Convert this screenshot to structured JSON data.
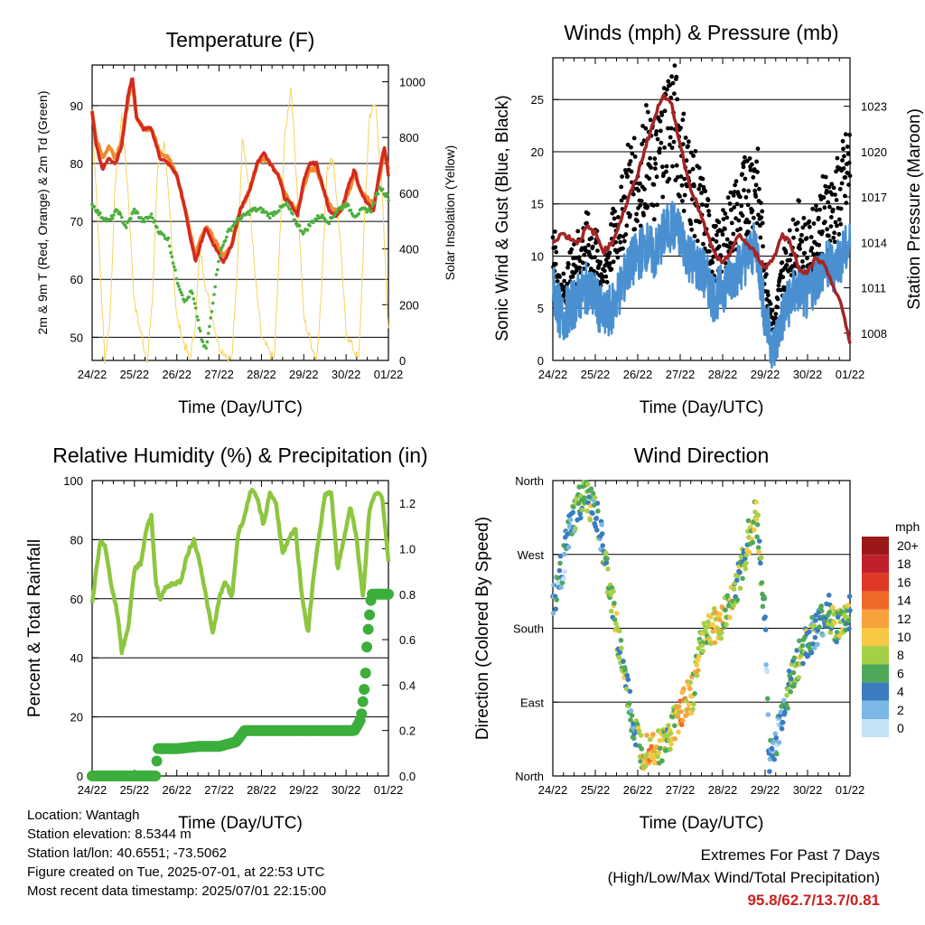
{
  "chart_data": [
    {
      "type": "line",
      "title": "Temperature (F)",
      "xlabel": "Time (Day/UTC)",
      "ylabel": "2m & 9m T (Red, Orange) & 2m Td (Green)",
      "y2label": "Solar Insolation (Yellow)",
      "xticks": [
        "24/22",
        "25/22",
        "26/22",
        "27/22",
        "28/22",
        "29/22",
        "30/22",
        "01/22"
      ],
      "ylim": [
        46,
        97
      ],
      "yticks": [
        50,
        60,
        70,
        80,
        90
      ],
      "y2lim": [
        0,
        1060
      ],
      "y2ticks": [
        0,
        200,
        400,
        600,
        800,
        1000
      ],
      "grid": true,
      "series": [
        {
          "name": "2m T",
          "color": "#d42a1e",
          "x": [
            0,
            0.1,
            0.25,
            0.4,
            0.55,
            0.7,
            0.85,
            0.95,
            1.05,
            1.2,
            1.4,
            1.6,
            1.8,
            2.0,
            2.2,
            2.35,
            2.45,
            2.55,
            2.7,
            2.8,
            2.95,
            3.1,
            3.3,
            3.5,
            3.7,
            3.9,
            4.05,
            4.2,
            4.4,
            4.55,
            4.7,
            4.85,
            5.0,
            5.15,
            5.3,
            5.45,
            5.6,
            5.75,
            5.9,
            6.05,
            6.2,
            6.35,
            6.5,
            6.65,
            6.8,
            6.9,
            7.0
          ],
          "y": [
            89,
            83,
            79,
            81,
            80,
            83,
            92,
            95,
            88,
            86,
            86,
            81,
            80,
            78,
            72,
            66,
            63,
            66,
            69,
            67,
            65,
            63,
            66,
            72,
            75,
            80,
            82,
            80,
            78,
            74,
            73,
            71,
            77,
            80,
            80,
            76,
            72,
            71,
            72,
            76,
            79,
            75,
            73,
            72,
            79,
            83,
            78
          ]
        },
        {
          "name": "9m T",
          "color": "#f08a30",
          "x": [
            0,
            0.1,
            0.25,
            0.4,
            0.55,
            0.7,
            0.85,
            0.95,
            1.05,
            1.2,
            1.4,
            1.6,
            1.8,
            2.0,
            2.2,
            2.35,
            2.45,
            2.55,
            2.7,
            2.8,
            2.95,
            3.1,
            3.3,
            3.5,
            3.7,
            3.9,
            4.05,
            4.2,
            4.4,
            4.55,
            4.7,
            4.85,
            5.0,
            5.15,
            5.3,
            5.45,
            5.6,
            5.75,
            5.9,
            6.05,
            6.2,
            6.35,
            6.5,
            6.65,
            6.8,
            6.9,
            7.0
          ],
          "y": [
            89,
            84,
            81,
            83,
            81,
            84,
            91,
            94,
            88,
            86,
            86,
            82,
            81,
            78,
            72,
            67,
            64,
            67,
            69,
            68,
            66,
            64,
            66,
            72,
            75,
            80,
            81,
            80,
            78,
            75,
            73,
            72,
            76,
            79,
            79,
            76,
            73,
            72,
            72,
            75,
            78,
            75,
            74,
            73,
            78,
            82,
            79
          ]
        },
        {
          "name": "2m Td",
          "color": "#4caf3e",
          "x": [
            0,
            0.2,
            0.4,
            0.6,
            0.8,
            1.0,
            1.2,
            1.4,
            1.6,
            1.8,
            2.0,
            2.2,
            2.35,
            2.5,
            2.6,
            2.7,
            2.85,
            3.0,
            3.2,
            3.4,
            3.6,
            3.8,
            4.0,
            4.2,
            4.4,
            4.6,
            4.8,
            5.0,
            5.2,
            5.4,
            5.6,
            5.8,
            6.0,
            6.2,
            6.4,
            6.6,
            6.8,
            7.0
          ],
          "y": [
            73,
            71,
            70,
            72,
            69,
            72,
            70,
            71,
            68,
            67,
            60,
            56,
            58,
            53,
            49,
            48,
            56,
            64,
            68,
            70,
            71,
            72,
            72,
            71,
            72,
            73,
            70,
            68,
            70,
            71,
            70,
            72,
            73,
            71,
            72,
            72,
            76,
            74
          ]
        },
        {
          "name": "Solar Insolation",
          "color": "#f4d35e",
          "axis": "right",
          "x": [
            0,
            0.3,
            0.42,
            0.55,
            0.7,
            0.85,
            1.0,
            1.3,
            1.42,
            1.55,
            1.7,
            1.85,
            2.0,
            2.3,
            2.42,
            2.55,
            2.7,
            2.85,
            3.0,
            3.3,
            3.42,
            3.55,
            3.7,
            3.85,
            4.0,
            4.3,
            4.42,
            4.55,
            4.7,
            4.85,
            5.0,
            5.3,
            5.42,
            5.55,
            5.7,
            5.85,
            6.0,
            6.3,
            6.42,
            6.55,
            6.7,
            6.85,
            7.0
          ],
          "y": [
            900,
            0,
            150,
            650,
            880,
            600,
            200,
            0,
            200,
            700,
            780,
            500,
            150,
            0,
            100,
            400,
            250,
            150,
            50,
            0,
            300,
            820,
            620,
            300,
            80,
            0,
            380,
            800,
            990,
            600,
            150,
            0,
            250,
            700,
            720,
            450,
            100,
            0,
            450,
            880,
            920,
            600,
            100
          ]
        }
      ]
    },
    {
      "type": "scatter",
      "title": "Winds (mph) & Pressure (mb)",
      "xlabel": "Time (Day/UTC)",
      "ylabel": "Sonic Wind & Gust (Blue, Black)",
      "y2label": "Station Pressure (Maroon)",
      "xticks": [
        "24/22",
        "25/22",
        "26/22",
        "27/22",
        "28/22",
        "29/22",
        "30/22",
        "01/22"
      ],
      "ylim": [
        0,
        29
      ],
      "yticks": [
        0,
        5,
        10,
        15,
        20,
        25
      ],
      "y2lim": [
        1006.2,
        1026.2
      ],
      "y2ticks": [
        1008,
        1011,
        1014,
        1017,
        1020,
        1023
      ],
      "grid": true,
      "series": [
        {
          "name": "Sonic Wind",
          "color": "#4a90d0",
          "x": [
            0,
            0.2,
            0.4,
            0.6,
            0.8,
            1.0,
            1.2,
            1.4,
            1.6,
            1.8,
            2.0,
            2.2,
            2.4,
            2.6,
            2.8,
            3.0,
            3.2,
            3.4,
            3.6,
            3.8,
            4.0,
            4.2,
            4.4,
            4.6,
            4.8,
            5.0,
            5.2,
            5.4,
            5.6,
            5.8,
            6.0,
            6.2,
            6.4,
            6.6,
            6.8,
            7.0
          ],
          "y": [
            7,
            4,
            5,
            6,
            7,
            6,
            4,
            5,
            7,
            9,
            10,
            11,
            10,
            12,
            13,
            12,
            10,
            9,
            8,
            6,
            7,
            8,
            9,
            10,
            11,
            4,
            1,
            4,
            6,
            7,
            6,
            8,
            9,
            9,
            10,
            11
          ]
        },
        {
          "name": "Gust",
          "color": "#000000",
          "x": [
            0,
            0.2,
            0.4,
            0.6,
            0.8,
            1.0,
            1.2,
            1.4,
            1.6,
            1.8,
            2.0,
            2.2,
            2.4,
            2.6,
            2.8,
            3.0,
            3.2,
            3.4,
            3.6,
            3.8,
            4.0,
            4.2,
            4.4,
            4.6,
            4.8,
            5.0,
            5.2,
            5.4,
            5.6,
            5.8,
            6.0,
            6.2,
            6.4,
            6.6,
            6.8,
            7.0
          ],
          "y": [
            11,
            6,
            8,
            10,
            11,
            10,
            8,
            11,
            13,
            17,
            16,
            19,
            17,
            21,
            23,
            20,
            17,
            15,
            13,
            10,
            11,
            13,
            14,
            16,
            17,
            8,
            3,
            8,
            10,
            12,
            10,
            12,
            14,
            14,
            16,
            18
          ]
        },
        {
          "name": "Station Pressure",
          "color": "#a52424",
          "axis": "right",
          "x": [
            0,
            0.2,
            0.4,
            0.6,
            0.8,
            1.0,
            1.2,
            1.4,
            1.6,
            1.8,
            2.0,
            2.2,
            2.4,
            2.6,
            2.8,
            3.0,
            3.2,
            3.4,
            3.6,
            3.8,
            4.0,
            4.2,
            4.4,
            4.6,
            4.8,
            5.0,
            5.2,
            5.4,
            5.6,
            5.8,
            6.0,
            6.2,
            6.4,
            6.6,
            6.8,
            7.0
          ],
          "y": [
            1014.0,
            1014.6,
            1014.3,
            1014.0,
            1015.0,
            1014.6,
            1013.4,
            1014.0,
            1015.5,
            1017.0,
            1018.5,
            1020.5,
            1022.2,
            1023.9,
            1023.0,
            1020.5,
            1018.0,
            1016.5,
            1014.8,
            1013.3,
            1012.5,
            1013.5,
            1014.5,
            1013.8,
            1013.2,
            1012.3,
            1013.0,
            1014.5,
            1014.0,
            1012.2,
            1012.0,
            1013.0,
            1012.5,
            1011.0,
            1010.0,
            1007.2
          ]
        }
      ]
    },
    {
      "type": "line",
      "title": "Relative Humidity (%) & Precipitation (in)",
      "xlabel": "Time (Day/UTC)",
      "ylabel": "Percent & Total Rainfall",
      "xticks": [
        "24/22",
        "25/22",
        "26/22",
        "27/22",
        "28/22",
        "29/22",
        "30/22",
        "01/22"
      ],
      "ylim": [
        0,
        100
      ],
      "yticks": [
        0,
        20,
        40,
        60,
        80,
        100
      ],
      "y2lim": [
        0,
        1.3
      ],
      "y2ticks": [
        "0.0",
        "0.2",
        "0.4",
        "0.6",
        "0.8",
        "1.0",
        "1.2"
      ],
      "grid": true,
      "series": [
        {
          "name": "Relative Humidity",
          "color": "#8dc63f",
          "x": [
            0,
            0.1,
            0.2,
            0.3,
            0.45,
            0.6,
            0.7,
            0.85,
            1.0,
            1.15,
            1.3,
            1.4,
            1.5,
            1.6,
            1.75,
            1.9,
            2.1,
            2.25,
            2.4,
            2.55,
            2.7,
            2.85,
            3.0,
            3.15,
            3.3,
            3.45,
            3.6,
            3.75,
            3.9,
            4.05,
            4.2,
            4.35,
            4.5,
            4.65,
            4.8,
            4.95,
            5.1,
            5.25,
            5.4,
            5.5,
            5.65,
            5.8,
            5.95,
            6.1,
            6.25,
            6.4,
            6.55,
            6.7,
            6.85,
            7.0
          ],
          "y": [
            58,
            70,
            80,
            78,
            65,
            55,
            42,
            50,
            70,
            72,
            85,
            88,
            66,
            60,
            64,
            65,
            66,
            75,
            80,
            72,
            60,
            48,
            60,
            66,
            60,
            82,
            88,
            97,
            94,
            85,
            96,
            92,
            75,
            80,
            84,
            62,
            48,
            70,
            85,
            95,
            96,
            70,
            80,
            92,
            80,
            60,
            90,
            96,
            95,
            73
          ]
        },
        {
          "name": "Total Rainfall",
          "color": "#3cae3c",
          "axis": "right",
          "x": [
            0,
            0.5,
            1.0,
            1.5,
            1.55,
            2.0,
            2.5,
            3.0,
            3.4,
            3.6,
            3.8,
            4.2,
            4.6,
            5.0,
            5.4,
            5.8,
            6.0,
            6.2,
            6.35,
            6.45,
            6.5,
            6.6,
            6.8,
            7.0
          ],
          "y": [
            0,
            0,
            0,
            0,
            0.12,
            0.12,
            0.13,
            0.13,
            0.15,
            0.2,
            0.2,
            0.2,
            0.2,
            0.2,
            0.2,
            0.2,
            0.2,
            0.2,
            0.25,
            0.42,
            0.6,
            0.8,
            0.8,
            0.8
          ]
        }
      ]
    },
    {
      "type": "scatter",
      "title": "Wind Direction",
      "xlabel": "Time (Day/UTC)",
      "ylabel": "Direction (Colored By Speed)",
      "xticks": [
        "24/22",
        "25/22",
        "26/22",
        "27/22",
        "28/22",
        "29/22",
        "30/22",
        "01/22"
      ],
      "yticks": [
        "North",
        "East",
        "South",
        "West",
        "North"
      ],
      "ylim": [
        0,
        360
      ],
      "grid": true,
      "legend": {
        "title": "mph",
        "position": "right",
        "labels": [
          "20+",
          "18",
          "16",
          "14",
          "12",
          "10",
          "8",
          "6",
          "4",
          "2",
          "0"
        ],
        "colors": [
          "#9a1818",
          "#c0202a",
          "#de3a26",
          "#f06828",
          "#f8a23e",
          "#f6c844",
          "#a6cf48",
          "#4ea85a",
          "#3a7cc0",
          "#7ab8e6",
          "#c4e2f6"
        ]
      },
      "series": [
        {
          "name": "Wind Direction",
          "x": [
            0,
            0.2,
            0.4,
            0.6,
            0.8,
            1.0,
            1.1,
            1.3,
            1.5,
            1.7,
            1.9,
            2.1,
            2.3,
            2.5,
            2.7,
            2.9,
            3.1,
            3.3,
            3.5,
            3.7,
            3.9,
            4.1,
            4.3,
            4.5,
            4.6,
            4.8,
            5.0,
            5.1,
            5.3,
            5.5,
            5.7,
            5.9,
            6.1,
            6.3,
            6.5,
            6.7,
            6.9,
            7.0
          ],
          "y": [
            210,
            250,
            300,
            330,
            340,
            320,
            300,
            240,
            180,
            120,
            60,
            30,
            40,
            35,
            45,
            70,
            90,
            100,
            170,
            180,
            185,
            200,
            230,
            260,
            290,
            320,
            190,
            20,
            50,
            100,
            130,
            155,
            170,
            185,
            200,
            180,
            190,
            200
          ],
          "speed": [
            4,
            3,
            4,
            6,
            8,
            5,
            4,
            6,
            8,
            6,
            4,
            9,
            11,
            8,
            7,
            10,
            12,
            9,
            8,
            9,
            10,
            8,
            7,
            6,
            8,
            9,
            3,
            4,
            3,
            5,
            6,
            7,
            5,
            4,
            6,
            7,
            8,
            6
          ]
        }
      ]
    }
  ],
  "info": {
    "location": "Location: Wantagh",
    "elevation": "Station elevation: 8.5344 m",
    "latlon": "Station lat/lon: 40.6551; -73.5062",
    "created": "Figure created on Tue, 2025-07-01, at 22:53 UTC",
    "recent": "Most recent data timestamp: 2025/07/01 22:15:00"
  },
  "extremes": {
    "title": "Extremes For Past 7 Days",
    "subtitle": "(High/Low/Max Wind/Total Precipitation)",
    "values": "95.8/62.7/13.7/0.81"
  }
}
